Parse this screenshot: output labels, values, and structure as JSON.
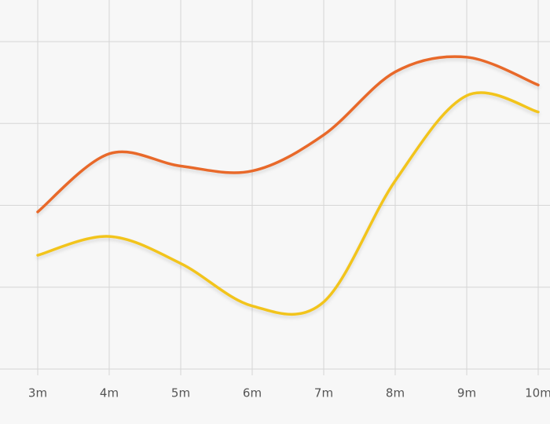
{
  "chart_data": {
    "type": "line",
    "categories": [
      "3m",
      "4m",
      "5m",
      "6m",
      "7m",
      "8m",
      "9m",
      "10m"
    ],
    "series": [
      {
        "color": "#e8692a",
        "values": [
          1.92,
          2.63,
          2.48,
          2.42,
          2.86,
          3.63,
          3.81,
          3.47
        ]
      },
      {
        "color": "#f2c41b",
        "values": [
          1.39,
          1.62,
          1.29,
          0.77,
          0.82,
          2.3,
          3.34,
          3.14
        ]
      }
    ],
    "ylim": [
      0,
      4
    ],
    "yticks": [
      0,
      1,
      2,
      3,
      4
    ],
    "grid": true
  }
}
